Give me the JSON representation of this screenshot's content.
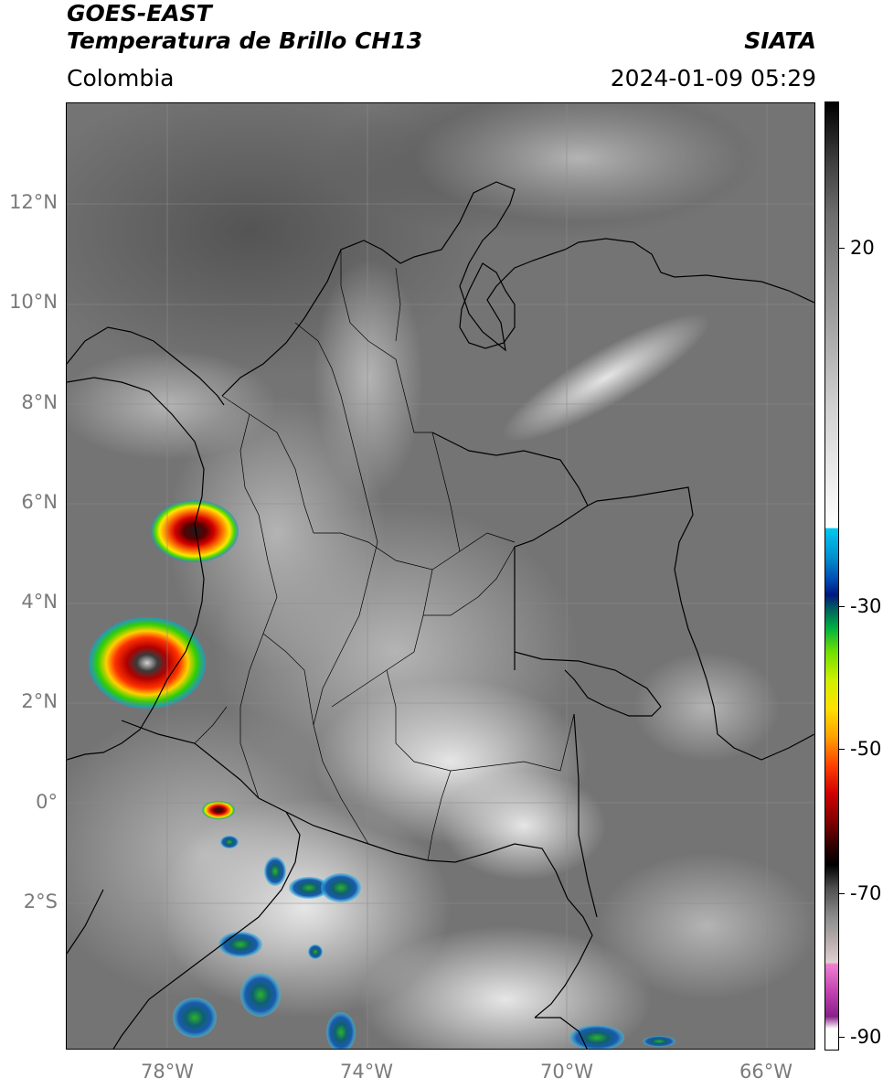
{
  "header": {
    "title_line1": "GOES-EAST",
    "title_line2": "Temperatura de Brillo CH13",
    "subtitle": "Colombia",
    "organization": "SIATA",
    "timestamp": "2024-01-09 05:29"
  },
  "map": {
    "region": "Colombia",
    "lon_range": [
      -80,
      -65
    ],
    "lat_range": [
      -4.9,
      14
    ],
    "lat_labels": [
      {
        "value": 12,
        "label": "12°N"
      },
      {
        "value": 10,
        "label": "10°N"
      },
      {
        "value": 8,
        "label": "8°N"
      },
      {
        "value": 6,
        "label": "6°N"
      },
      {
        "value": 4,
        "label": "4°N"
      },
      {
        "value": 2,
        "label": "2°N"
      },
      {
        "value": 0,
        "label": "0°"
      },
      {
        "value": -2,
        "label": "2°S"
      }
    ],
    "lon_labels": [
      {
        "value": -78,
        "label": "78°W"
      },
      {
        "value": -74,
        "label": "74°W"
      },
      {
        "value": -70,
        "label": "70°W"
      },
      {
        "value": -66,
        "label": "66°W"
      }
    ],
    "grid": true,
    "colors": {
      "background_gray": "#777777",
      "border": "#000000"
    }
  },
  "colorbar": {
    "range": [
      -92,
      28
    ],
    "ticks": [
      {
        "value": 20,
        "label": "20"
      },
      {
        "value": -30,
        "label": "-30"
      },
      {
        "value": -50,
        "label": "-50"
      },
      {
        "value": -70,
        "label": "-70"
      },
      {
        "value": -90,
        "label": "-90"
      }
    ]
  }
}
